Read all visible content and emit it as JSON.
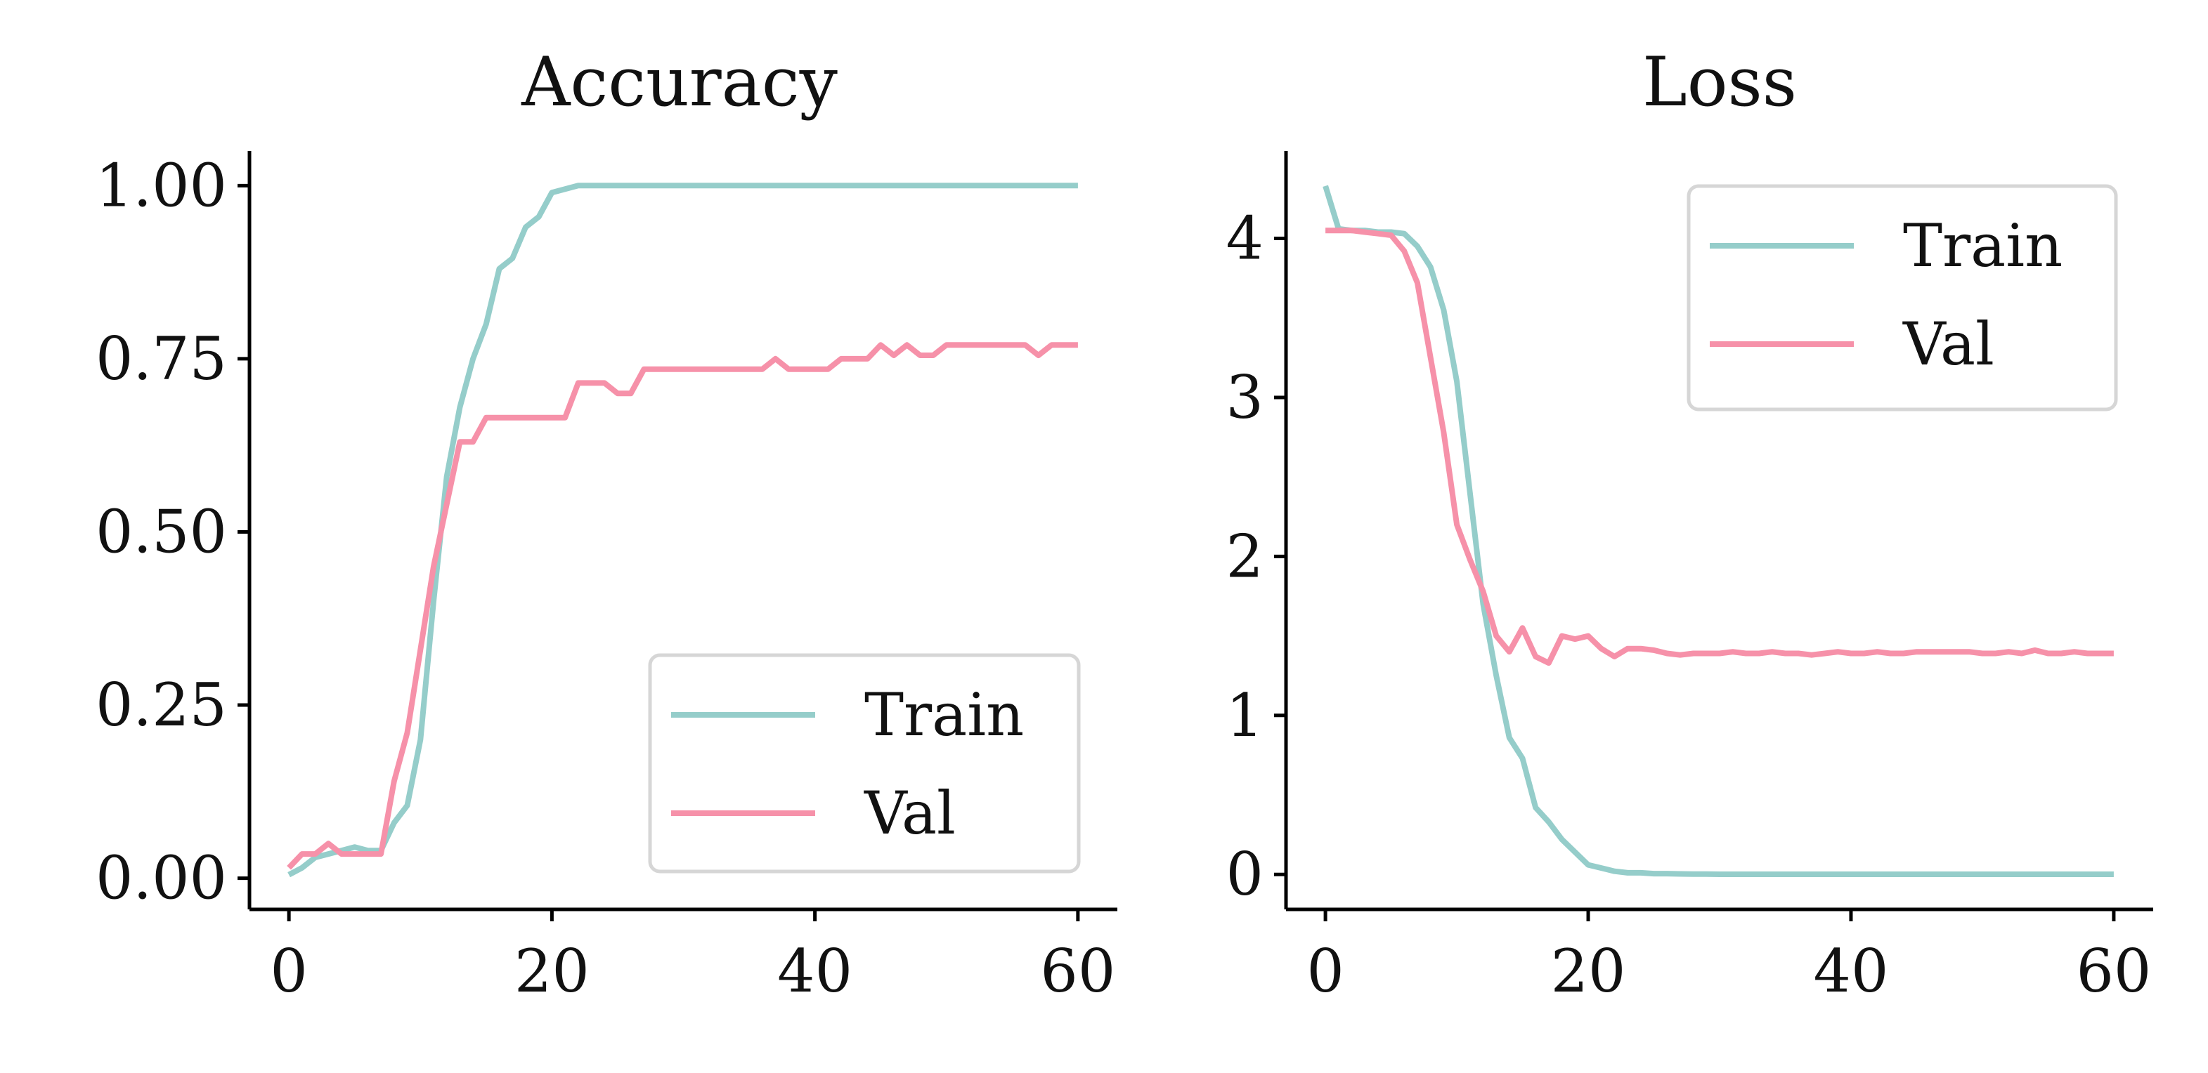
{
  "chart_data": [
    {
      "type": "line",
      "title": "Accuracy",
      "xlabel": "",
      "ylabel": "",
      "xlim": [
        -3,
        63
      ],
      "ylim": [
        -0.045,
        1.05
      ],
      "xticks": [
        0,
        20,
        40,
        60
      ],
      "xtick_labels": [
        "0",
        "20",
        "40",
        "60"
      ],
      "yticks": [
        0,
        0.25,
        0.5,
        0.75,
        1.0
      ],
      "ytick_labels": [
        "0.00",
        "0.25",
        "0.50",
        "0.75",
        "1.00"
      ],
      "grid": false,
      "legend_position": "lower right",
      "series": [
        {
          "name": "Train",
          "color": "#95cdca",
          "x": [
            0,
            1,
            2,
            3,
            4,
            5,
            6,
            7,
            8,
            9,
            10,
            11,
            12,
            13,
            14,
            15,
            16,
            17,
            18,
            19,
            20,
            21,
            22,
            23,
            24,
            25,
            26,
            27,
            28,
            29,
            30,
            31,
            32,
            33,
            34,
            35,
            36,
            37,
            38,
            39,
            40,
            41,
            42,
            43,
            44,
            45,
            46,
            47,
            48,
            49,
            50,
            51,
            52,
            53,
            54,
            55,
            56,
            57,
            58,
            59,
            60
          ],
          "y": [
            0.005,
            0.015,
            0.03,
            0.035,
            0.04,
            0.045,
            0.04,
            0.04,
            0.08,
            0.105,
            0.2,
            0.4,
            0.58,
            0.68,
            0.75,
            0.8,
            0.88,
            0.895,
            0.94,
            0.955,
            0.99,
            0.995,
            1.0,
            1.0,
            1.0,
            1.0,
            1.0,
            1.0,
            1.0,
            1.0,
            1.0,
            1.0,
            1.0,
            1.0,
            1.0,
            1.0,
            1.0,
            1.0,
            1.0,
            1.0,
            1.0,
            1.0,
            1.0,
            1.0,
            1.0,
            1.0,
            1.0,
            1.0,
            1.0,
            1.0,
            1.0,
            1.0,
            1.0,
            1.0,
            1.0,
            1.0,
            1.0,
            1.0,
            1.0,
            1.0,
            1.0
          ]
        },
        {
          "name": "Val",
          "color": "#f691a9",
          "x": [
            0,
            1,
            2,
            3,
            4,
            5,
            6,
            7,
            8,
            9,
            10,
            11,
            12,
            13,
            14,
            15,
            16,
            17,
            18,
            19,
            20,
            21,
            22,
            23,
            24,
            25,
            26,
            27,
            28,
            29,
            30,
            31,
            32,
            33,
            34,
            35,
            36,
            37,
            38,
            39,
            40,
            41,
            42,
            43,
            44,
            45,
            46,
            47,
            48,
            49,
            50,
            51,
            52,
            53,
            54,
            55,
            56,
            57,
            58,
            59,
            60
          ],
          "y": [
            0.015,
            0.035,
            0.035,
            0.05,
            0.035,
            0.035,
            0.035,
            0.035,
            0.14,
            0.21,
            0.33,
            0.45,
            0.54,
            0.63,
            0.63,
            0.665,
            0.665,
            0.665,
            0.665,
            0.665,
            0.665,
            0.665,
            0.715,
            0.715,
            0.715,
            0.7,
            0.7,
            0.735,
            0.735,
            0.735,
            0.735,
            0.735,
            0.735,
            0.735,
            0.735,
            0.735,
            0.735,
            0.75,
            0.735,
            0.735,
            0.735,
            0.735,
            0.75,
            0.75,
            0.75,
            0.77,
            0.755,
            0.77,
            0.755,
            0.755,
            0.77,
            0.77,
            0.77,
            0.77,
            0.77,
            0.77,
            0.77,
            0.755,
            0.77,
            0.77,
            0.77
          ]
        }
      ]
    },
    {
      "type": "line",
      "title": "Loss",
      "xlabel": "",
      "ylabel": "",
      "xlim": [
        -3,
        63
      ],
      "ylim": [
        -0.22,
        4.55
      ],
      "xticks": [
        0,
        20,
        40,
        60
      ],
      "xtick_labels": [
        "0",
        "20",
        "40",
        "60"
      ],
      "yticks": [
        0,
        1,
        2,
        3,
        4
      ],
      "ytick_labels": [
        "0",
        "1",
        "2",
        "3",
        "4"
      ],
      "grid": false,
      "legend_position": "upper right",
      "series": [
        {
          "name": "Train",
          "color": "#95cdca",
          "x": [
            0,
            1,
            2,
            3,
            4,
            5,
            6,
            7,
            8,
            9,
            10,
            11,
            12,
            13,
            14,
            15,
            16,
            17,
            18,
            19,
            20,
            21,
            22,
            23,
            24,
            25,
            26,
            27,
            28,
            29,
            30,
            31,
            32,
            33,
            34,
            35,
            36,
            37,
            38,
            39,
            40,
            41,
            42,
            43,
            44,
            45,
            46,
            47,
            48,
            49,
            50,
            51,
            52,
            53,
            54,
            55,
            56,
            57,
            58,
            59,
            60
          ],
          "y": [
            4.33,
            4.06,
            4.05,
            4.05,
            4.04,
            4.04,
            4.03,
            3.95,
            3.82,
            3.55,
            3.1,
            2.4,
            1.7,
            1.25,
            0.86,
            0.73,
            0.42,
            0.33,
            0.22,
            0.14,
            0.06,
            0.04,
            0.02,
            0.01,
            0.01,
            0.005,
            0.005,
            0.003,
            0.002,
            0.002,
            0.001,
            0.001,
            0.001,
            0.001,
            0.001,
            0.001,
            0.001,
            0.001,
            0.001,
            0.001,
            0.001,
            0.001,
            0.001,
            0.001,
            0.001,
            0.001,
            0.001,
            0.001,
            0.001,
            0.001,
            0.001,
            0.001,
            0.001,
            0.001,
            0.001,
            0.001,
            0.001,
            0.001,
            0.001,
            0.001,
            0.001
          ]
        },
        {
          "name": "Val",
          "color": "#f691a9",
          "x": [
            0,
            1,
            2,
            3,
            4,
            5,
            6,
            7,
            8,
            9,
            10,
            11,
            12,
            13,
            14,
            15,
            16,
            17,
            18,
            19,
            20,
            21,
            22,
            23,
            24,
            25,
            26,
            27,
            28,
            29,
            30,
            31,
            32,
            33,
            34,
            35,
            36,
            37,
            38,
            39,
            40,
            41,
            42,
            43,
            44,
            45,
            46,
            47,
            48,
            49,
            50,
            51,
            52,
            53,
            54,
            55,
            56,
            57,
            58,
            59,
            60
          ],
          "y": [
            4.05,
            4.05,
            4.05,
            4.04,
            4.03,
            4.02,
            3.92,
            3.72,
            3.25,
            2.78,
            2.2,
            1.98,
            1.78,
            1.5,
            1.4,
            1.55,
            1.37,
            1.33,
            1.5,
            1.48,
            1.5,
            1.42,
            1.37,
            1.42,
            1.42,
            1.41,
            1.39,
            1.38,
            1.39,
            1.39,
            1.39,
            1.4,
            1.39,
            1.39,
            1.4,
            1.39,
            1.39,
            1.38,
            1.39,
            1.4,
            1.39,
            1.39,
            1.4,
            1.39,
            1.39,
            1.4,
            1.4,
            1.4,
            1.4,
            1.4,
            1.39,
            1.39,
            1.4,
            1.39,
            1.41,
            1.39,
            1.39,
            1.4,
            1.39,
            1.39,
            1.39
          ]
        }
      ]
    }
  ]
}
